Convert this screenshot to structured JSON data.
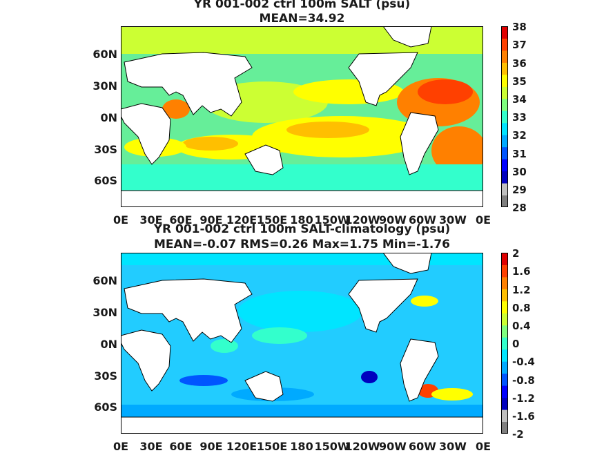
{
  "panel_top": {
    "title_line1": "YR 001-002 ctrl 100m SALT (psu)",
    "title_line2": "MEAN=34.92",
    "lat_labels": [
      "60N",
      "30N",
      "0N",
      "30S",
      "60S"
    ],
    "lon_labels": [
      "0E",
      "30E",
      "60E",
      "90E",
      "120E",
      "150E",
      "180",
      "150W",
      "120W",
      "90W",
      "60W",
      "30W",
      "0E"
    ],
    "colorbar_ticks": [
      "38",
      "37",
      "36",
      "35",
      "34",
      "33",
      "32",
      "31",
      "30",
      "29",
      "28"
    ],
    "colorbar_range": [
      28,
      38
    ],
    "colormap": [
      "#7f7f7f",
      "#bfbfbf",
      "#0000bf",
      "#0000ff",
      "#0055ff",
      "#00aaff",
      "#00e5ff",
      "#33ffcc",
      "#7fff7f",
      "#ccff33",
      "#ffff00",
      "#ffbf00",
      "#ff8000",
      "#ff4000",
      "#e00000"
    ],
    "ocean_color": "#66ee99",
    "land_color": "#ffffff"
  },
  "panel_bottom": {
    "title_line1": "YR 001-002 ctrl 100m SALT-climatology (psu)",
    "title_line2": "MEAN=-0.07   RMS=0.26   Max=1.75   Min=-1.76",
    "lat_labels": [
      "60N",
      "30N",
      "0N",
      "30S",
      "60S"
    ],
    "lon_labels": [
      "0E",
      "30E",
      "60E",
      "90E",
      "120E",
      "150E",
      "180",
      "150W",
      "120W",
      "90W",
      "60W",
      "30W",
      "0E"
    ],
    "colorbar_ticks": [
      "2",
      "1.6",
      "1.2",
      "0.8",
      "0.4",
      "0",
      "-0.4",
      "-0.8",
      "-1.2",
      "-1.6",
      "-2"
    ],
    "colorbar_range": [
      -2,
      2
    ],
    "colormap": [
      "#7f7f7f",
      "#bfbfbf",
      "#0000bf",
      "#0000ff",
      "#0055ff",
      "#00aaff",
      "#00e5ff",
      "#33ffcc",
      "#7fff7f",
      "#ccff33",
      "#ffff00",
      "#ffbf00",
      "#ff8000",
      "#ff4000",
      "#e00000"
    ],
    "ocean_color": "#22ccff",
    "land_color": "#ffffff"
  }
}
